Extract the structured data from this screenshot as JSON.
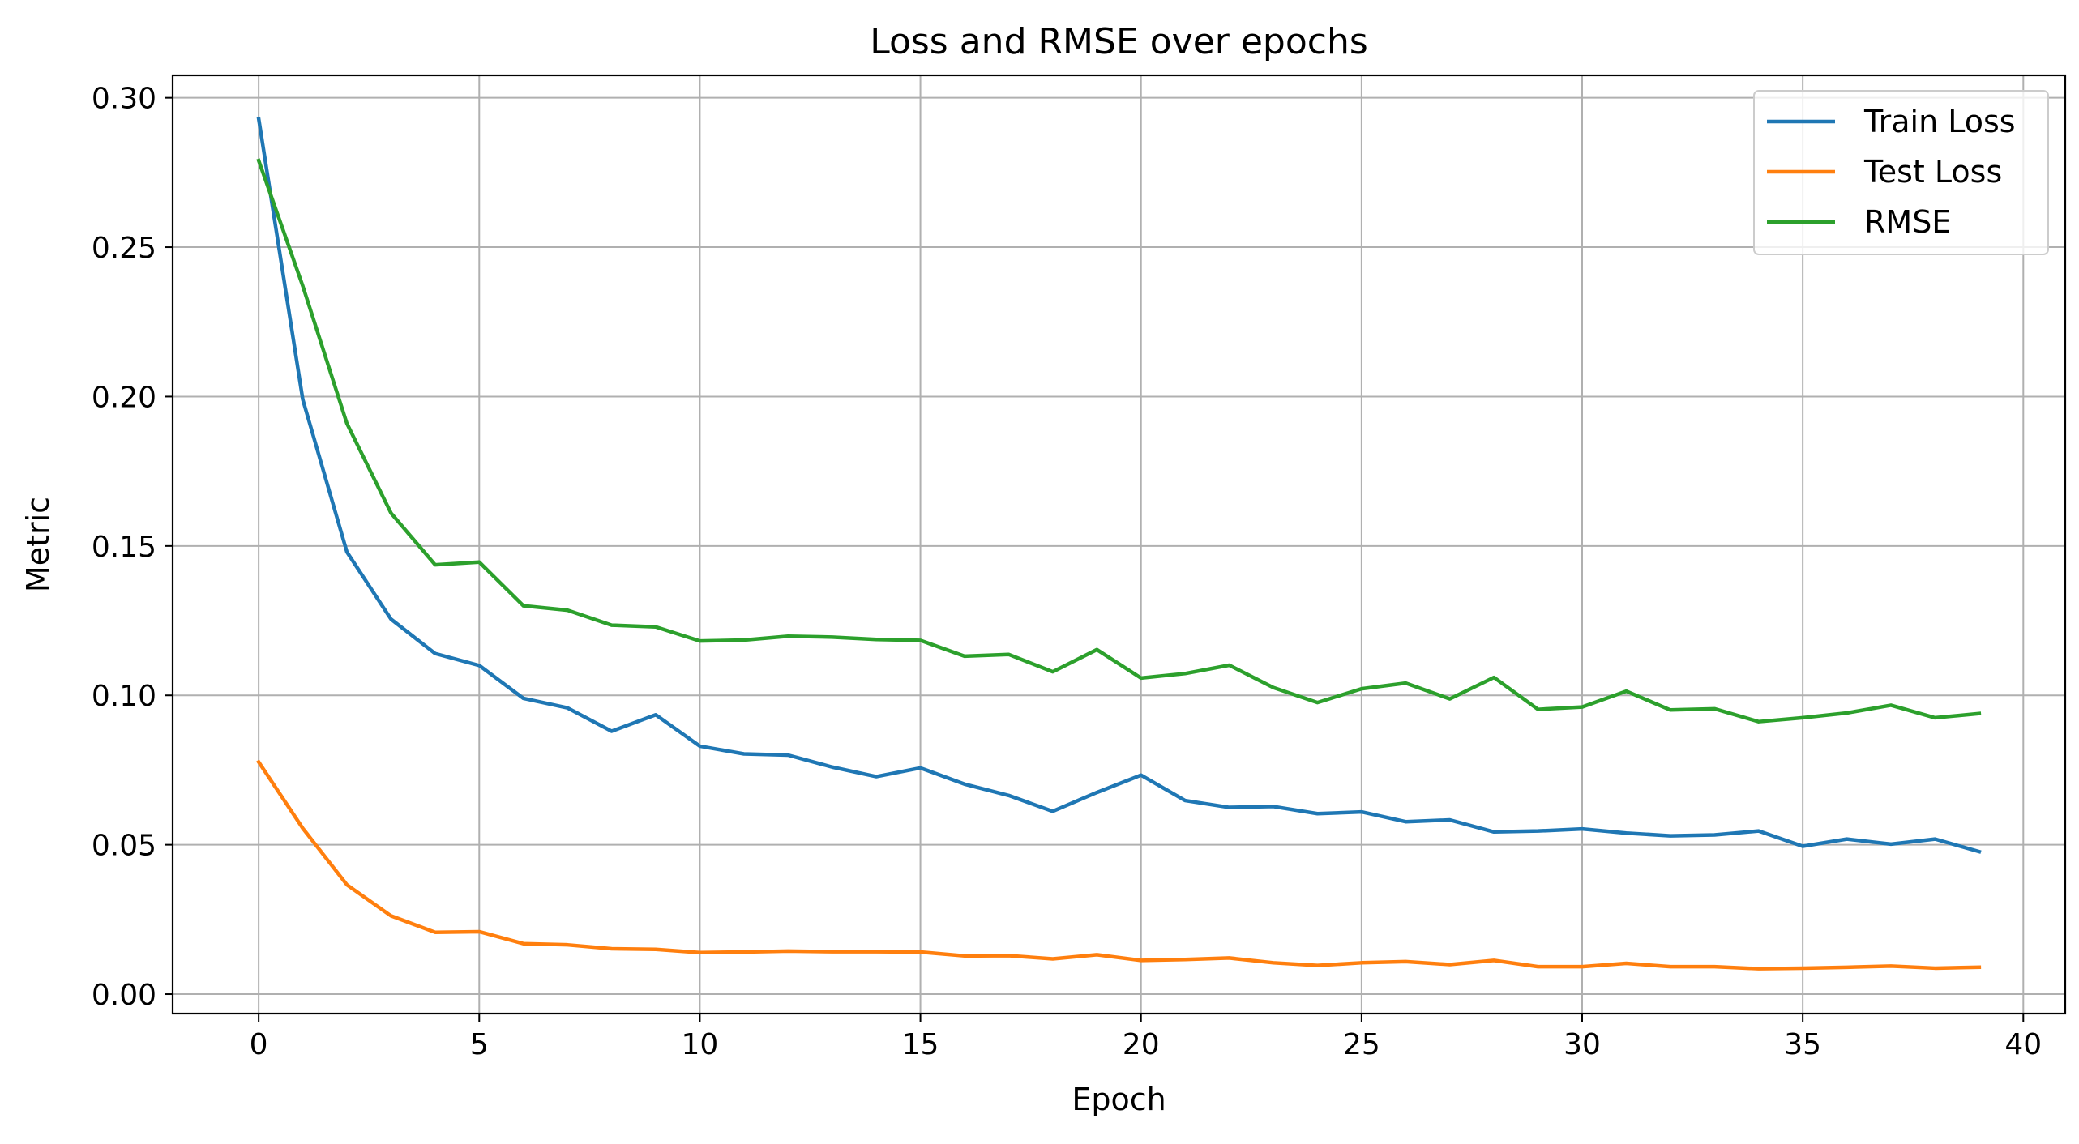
{
  "chart_data": {
    "type": "line",
    "title": "Loss and RMSE over epochs",
    "xlabel": "Epoch",
    "ylabel": "Metric",
    "xlim": [
      -1.95,
      40.95
    ],
    "ylim": [
      -0.0065,
      0.3075
    ],
    "xticks": [
      0,
      5,
      10,
      15,
      20,
      25,
      30,
      35,
      40
    ],
    "yticks": [
      0.0,
      0.05,
      0.1,
      0.15,
      0.2,
      0.25,
      0.3
    ],
    "xtick_labels": [
      "0",
      "5",
      "10",
      "15",
      "20",
      "25",
      "30",
      "35",
      "40"
    ],
    "ytick_labels": [
      "0.00",
      "0.05",
      "0.10",
      "0.15",
      "0.20",
      "0.25",
      "0.30"
    ],
    "grid": true,
    "legend_position": "top-right",
    "x": [
      0,
      1,
      2,
      3,
      4,
      5,
      6,
      7,
      8,
      9,
      10,
      11,
      12,
      13,
      14,
      15,
      16,
      17,
      18,
      19,
      20,
      21,
      22,
      23,
      24,
      25,
      26,
      27,
      28,
      29,
      30,
      31,
      32,
      33,
      34,
      35,
      36,
      37,
      38,
      39
    ],
    "series": [
      {
        "name": "Train Loss",
        "color": "#1f77b4",
        "values": [
          0.293,
          0.199,
          0.148,
          0.1255,
          0.114,
          0.11,
          0.099,
          0.0958,
          0.088,
          0.0935,
          0.083,
          0.0804,
          0.08,
          0.076,
          0.0728,
          0.0757,
          0.0703,
          0.0665,
          0.0612,
          0.0675,
          0.0733,
          0.0648,
          0.0625,
          0.0628,
          0.0604,
          0.061,
          0.0577,
          0.0583,
          0.0543,
          0.0546,
          0.0553,
          0.0539,
          0.053,
          0.0533,
          0.0546,
          0.0495,
          0.0519,
          0.0502,
          0.0519,
          0.0477
        ]
      },
      {
        "name": "Test Loss",
        "color": "#ff7f0e",
        "values": [
          0.0777,
          0.0555,
          0.0366,
          0.0262,
          0.0207,
          0.0209,
          0.0169,
          0.0165,
          0.0152,
          0.015,
          0.0139,
          0.0141,
          0.0144,
          0.0142,
          0.0142,
          0.0141,
          0.0128,
          0.0129,
          0.0118,
          0.0132,
          0.0113,
          0.0116,
          0.0121,
          0.0105,
          0.0096,
          0.0105,
          0.0109,
          0.0099,
          0.0113,
          0.0092,
          0.0092,
          0.0103,
          0.0092,
          0.0092,
          0.0085,
          0.0087,
          0.009,
          0.0094,
          0.0087,
          0.009
        ]
      },
      {
        "name": "RMSE",
        "color": "#2ca02c",
        "values": [
          0.279,
          0.237,
          0.191,
          0.161,
          0.1437,
          0.1446,
          0.13,
          0.1285,
          0.1235,
          0.1229,
          0.1182,
          0.1185,
          0.1198,
          0.1195,
          0.1187,
          0.1184,
          0.1131,
          0.1137,
          0.1079,
          0.1153,
          0.1058,
          0.1073,
          0.1101,
          0.1026,
          0.0976,
          0.1022,
          0.1041,
          0.0988,
          0.106,
          0.0953,
          0.0961,
          0.1014,
          0.0951,
          0.0955,
          0.0912,
          0.0925,
          0.0941,
          0.0967,
          0.0925,
          0.0939
        ]
      }
    ]
  }
}
